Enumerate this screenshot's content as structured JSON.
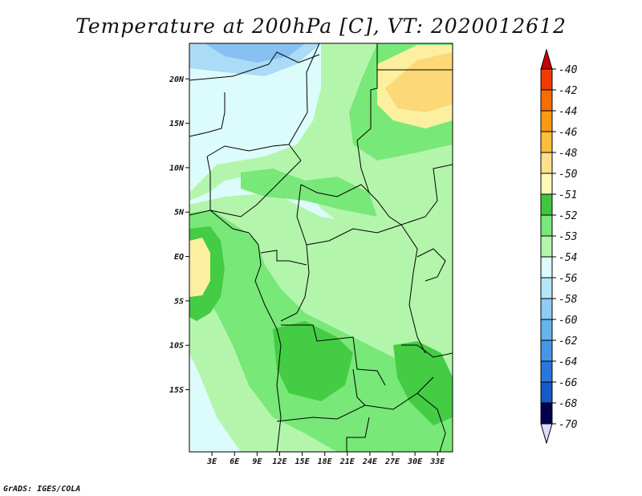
{
  "title": "Temperature at 200hPa [C], VT: 2020012612",
  "credit": "GrADS: IGES/COLA",
  "map": {
    "lon_range": [
      0,
      35
    ],
    "lat_range": [
      -22,
      24
    ],
    "x_ticks": [
      {
        "lon": 3,
        "label": "3E"
      },
      {
        "lon": 6,
        "label": "6E"
      },
      {
        "lon": 9,
        "label": "9E"
      },
      {
        "lon": 12,
        "label": "12E"
      },
      {
        "lon": 15,
        "label": "15E"
      },
      {
        "lon": 18,
        "label": "18E"
      },
      {
        "lon": 21,
        "label": "21E"
      },
      {
        "lon": 24,
        "label": "24E"
      },
      {
        "lon": 27,
        "label": "27E"
      },
      {
        "lon": 30,
        "label": "30E"
      },
      {
        "lon": 33,
        "label": "33E"
      }
    ],
    "y_ticks": [
      {
        "lat": 20,
        "label": "20N"
      },
      {
        "lat": 15,
        "label": "15N"
      },
      {
        "lat": 10,
        "label": "10N"
      },
      {
        "lat": 5,
        "label": "5N"
      },
      {
        "lat": 0,
        "label": "EQ"
      },
      {
        "lat": -5,
        "label": "5S"
      },
      {
        "lat": -10,
        "label": "10S"
      },
      {
        "lat": -15,
        "label": "15S"
      }
    ]
  },
  "colors": {
    "c_54": "#dcfcfc",
    "c_53": "#b4f5ac",
    "c_52": "#78e878",
    "c_51": "#44cc44",
    "c_50": "#fcf0a0",
    "c_48": "#fcd878",
    "c_56": "#aadcf6",
    "c_58": "#88c0f2"
  },
  "legend": {
    "items": [
      {
        "label": "-40",
        "color": "#e60000"
      },
      {
        "label": "-42",
        "color": "#f03c00"
      },
      {
        "label": "-44",
        "color": "#f56e00"
      },
      {
        "label": "-46",
        "color": "#f99a14"
      },
      {
        "label": "-48",
        "color": "#fcbf3c"
      },
      {
        "label": "-50",
        "color": "#fde08c"
      },
      {
        "label": "-51",
        "color": "#fdf8b8"
      },
      {
        "label": "-52",
        "color": "#3cc83c"
      },
      {
        "label": "-53",
        "color": "#78e878"
      },
      {
        "label": "-54",
        "color": "#b4f5ac"
      },
      {
        "label": "-56",
        "color": "#dcfcfc"
      },
      {
        "label": "-58",
        "color": "#b4e6fa"
      },
      {
        "label": "-60",
        "color": "#8ccdf6"
      },
      {
        "label": "-62",
        "color": "#64b4f0"
      },
      {
        "label": "-64",
        "color": "#4696e8"
      },
      {
        "label": "-66",
        "color": "#2878dc"
      },
      {
        "label": "-68",
        "color": "#145ac8"
      },
      {
        "label": "-70",
        "color": "#0a32a0"
      }
    ],
    "top_arrow_color": "#c80000",
    "bottom_arrow_color": "#dcdcf8",
    "bottom_box_color": "#000050"
  }
}
